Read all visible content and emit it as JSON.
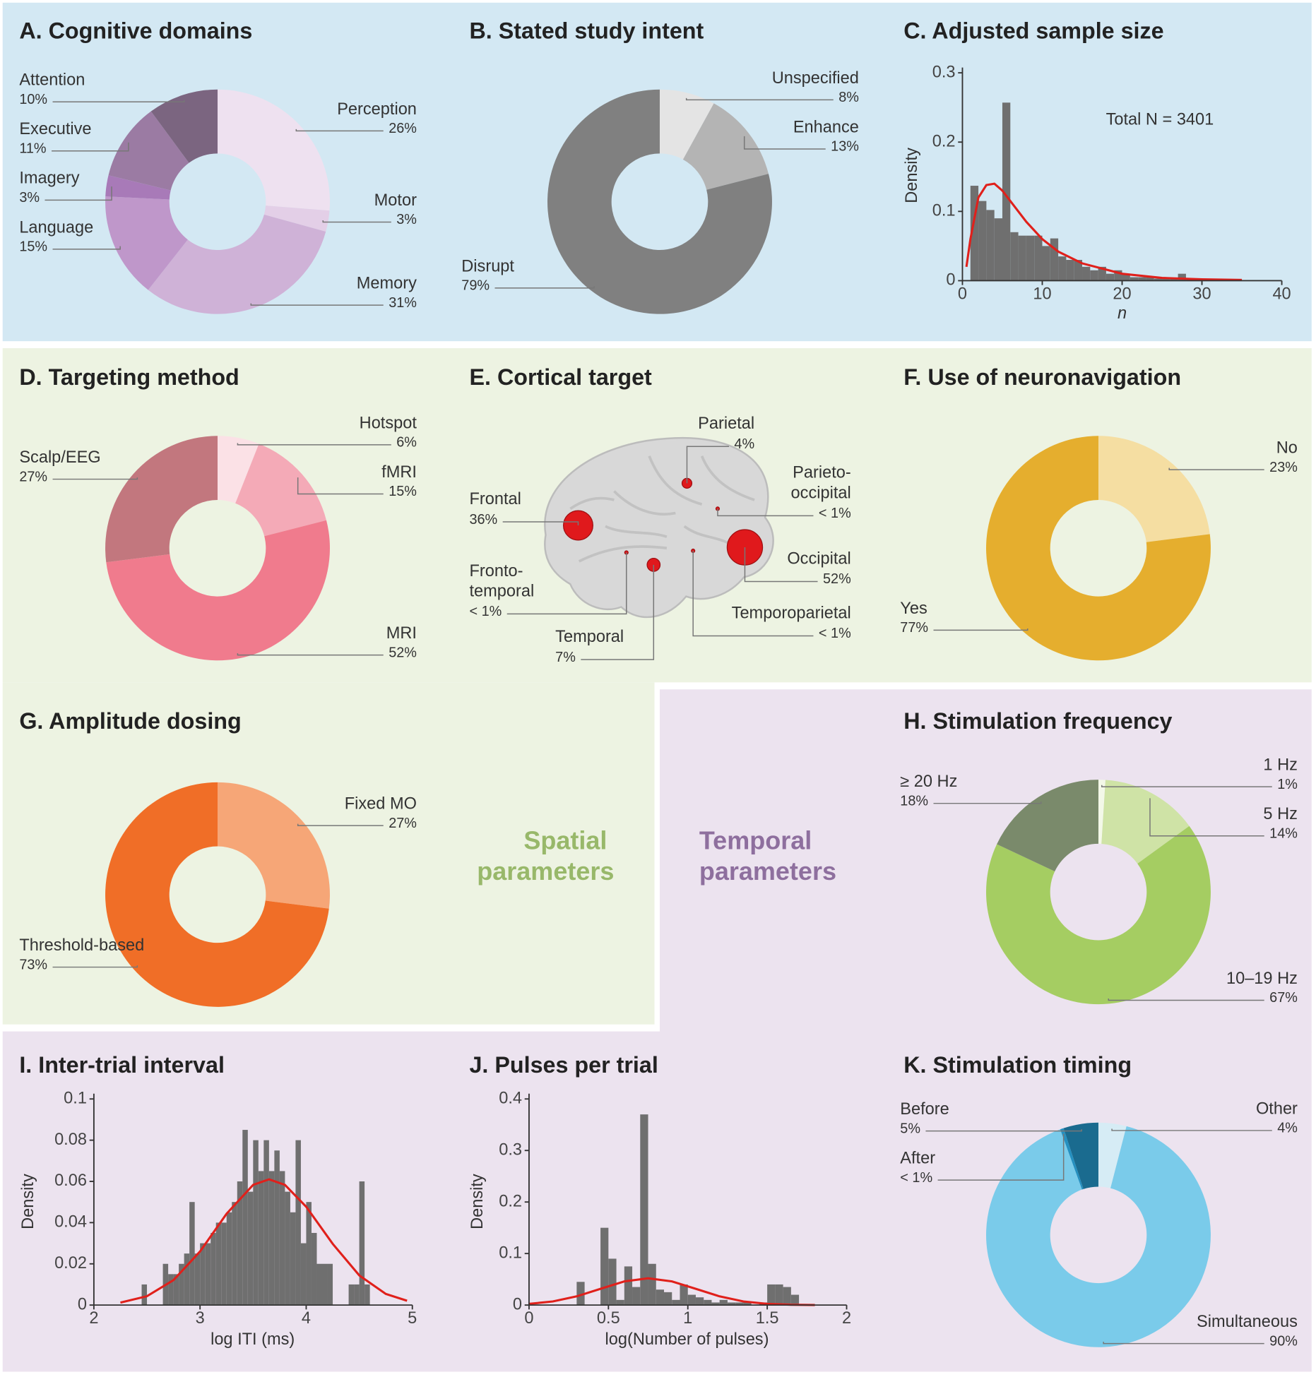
{
  "chart_data": [
    {
      "type": "donut",
      "title": "A. Cognitive domains",
      "categories": [
        "Perception",
        "Motor",
        "Memory",
        "Language",
        "Imagery",
        "Executive",
        "Attention"
      ],
      "values": [
        26,
        3,
        31,
        15,
        3,
        11,
        10
      ],
      "value_labels": [
        "26%",
        "3%",
        "31%",
        "15%",
        "3%",
        "11%",
        "10%"
      ],
      "colors": [
        "#eee1f0",
        "#e3cfe7",
        "#cfb2d7",
        "#bf97ca",
        "#a87ab8",
        "#9b7ba3",
        "#7b6580"
      ]
    },
    {
      "type": "donut",
      "title": "B. Stated study intent",
      "categories": [
        "Unspecified",
        "Enhance",
        "Disrupt"
      ],
      "values": [
        8,
        13,
        79
      ],
      "value_labels": [
        "8%",
        "13%",
        "79%"
      ],
      "colors": [
        "#e4e4e4",
        "#b4b4b4",
        "#808080"
      ]
    },
    {
      "type": "histogram",
      "title": "C. Adjusted sample size",
      "xlabel": "n",
      "ylabel": "Density",
      "annotation": "Total N = 3401",
      "bins": [
        1,
        2,
        3,
        4,
        5,
        6,
        7,
        8,
        9,
        10,
        11,
        12,
        13,
        14,
        15,
        16,
        17,
        18,
        19,
        20,
        21,
        22,
        23,
        24,
        25,
        26,
        27,
        28,
        29,
        30,
        31,
        32
      ],
      "values": [
        0.137,
        0.115,
        0.102,
        0.09,
        0.257,
        0.07,
        0.065,
        0.065,
        0.065,
        0.05,
        0.061,
        0.035,
        0.03,
        0.03,
        0.02,
        0.015,
        0.02,
        0.01,
        0.015,
        0.01,
        0.005,
        0.005,
        0.005,
        0.003,
        0.003,
        0.003,
        0.01,
        0.003,
        0.003,
        0.002,
        0.002
      ],
      "color": "#6f6f6f",
      "fit": {
        "color": "#e0201b",
        "x": [
          0.5,
          1,
          2,
          3,
          4,
          5,
          6,
          8,
          10,
          12,
          15,
          20,
          25,
          30,
          35
        ],
        "values": [
          0.02,
          0.06,
          0.12,
          0.138,
          0.14,
          0.13,
          0.115,
          0.085,
          0.06,
          0.042,
          0.025,
          0.01,
          0.004,
          0.002,
          0.001
        ]
      },
      "xlim": [
        0,
        40
      ],
      "xticks": [
        0,
        10,
        20,
        30,
        40
      ],
      "ylim": [
        0,
        0.3
      ],
      "yticks": [
        0,
        0.1,
        0.2,
        0.3
      ]
    },
    {
      "type": "donut",
      "title": "D. Targeting method",
      "categories": [
        "Hotspot",
        "fMRI",
        "MRI",
        "Scalp/EEG"
      ],
      "values": [
        6,
        15,
        52,
        27
      ],
      "value_labels": [
        "6%",
        "15%",
        "52%",
        "27%"
      ],
      "colors": [
        "#fbe1e6",
        "#f4aab7",
        "#f07b8d",
        "#c2777e"
      ]
    },
    {
      "type": "bubble",
      "title": "E. Cortical target",
      "color": "#e0191c",
      "categories": [
        "Parietal",
        "Parieto-occipital",
        "Occipital",
        "Temporoparietal",
        "Temporal",
        "Fronto-temporal",
        "Frontal"
      ],
      "values": [
        4,
        0.5,
        52,
        0.5,
        7,
        0.5,
        36
      ],
      "value_labels": [
        "4%",
        "< 1%",
        "52%",
        "< 1%",
        "7%",
        "< 1%",
        "36%"
      ]
    },
    {
      "type": "donut",
      "title": "F. Use of neuronavigation",
      "categories": [
        "No",
        "Yes"
      ],
      "values": [
        23,
        77
      ],
      "value_labels": [
        "23%",
        "77%"
      ],
      "colors": [
        "#f5dea2",
        "#e5ae2e"
      ]
    },
    {
      "type": "donut",
      "title": "G. Amplitude dosing",
      "categories": [
        "Fixed MO",
        "Threshold-based"
      ],
      "values": [
        27,
        73
      ],
      "value_labels": [
        "27%",
        "73%"
      ],
      "colors": [
        "#f6a677",
        "#f06e27"
      ]
    },
    {
      "type": "donut",
      "title": "H. Stimulation frequency",
      "categories": [
        "1 Hz",
        "5 Hz",
        "10–19 Hz",
        "≥ 20 Hz"
      ],
      "values": [
        1,
        14,
        67,
        18
      ],
      "value_labels": [
        "1%",
        "14%",
        "67%",
        "18%"
      ],
      "colors": [
        "#f3f8e8",
        "#cfe3a6",
        "#a5cd62",
        "#7a8a6b"
      ]
    },
    {
      "type": "histogram",
      "title": "I. Inter-trial interval",
      "xlabel": "log ITI (ms)",
      "ylabel": "Density",
      "bins": [
        2.45,
        2.5,
        2.55,
        2.6,
        2.65,
        2.7,
        2.75,
        2.8,
        2.85,
        2.9,
        2.95,
        3.0,
        3.05,
        3.1,
        3.15,
        3.2,
        3.25,
        3.3,
        3.35,
        3.4,
        3.45,
        3.5,
        3.55,
        3.6,
        3.65,
        3.7,
        3.75,
        3.8,
        3.85,
        3.9,
        3.95,
        4.0,
        4.05,
        4.1,
        4.15,
        4.2,
        4.25,
        4.3,
        4.35,
        4.4,
        4.45,
        4.5,
        4.55,
        4.6
      ],
      "values": [
        0.01,
        0,
        0,
        0,
        0.02,
        0.015,
        0.015,
        0.02,
        0.025,
        0.05,
        0.025,
        0.03,
        0.03,
        0.035,
        0.04,
        0.04,
        0.045,
        0.05,
        0.06,
        0.085,
        0.055,
        0.08,
        0.065,
        0.08,
        0.065,
        0.075,
        0.065,
        0.055,
        0.045,
        0.08,
        0.03,
        0.05,
        0.035,
        0.02,
        0.02,
        0.02,
        0,
        0,
        0,
        0.01,
        0.01,
        0.06,
        0.01
      ],
      "color": "#6f6f6f",
      "fit": {
        "color": "#e0201b",
        "x": [
          2.25,
          2.5,
          2.75,
          3,
          3.25,
          3.5,
          3.65,
          3.8,
          4,
          4.25,
          4.5,
          4.75,
          4.95
        ],
        "values": [
          0.0012,
          0.0043,
          0.0121,
          0.026,
          0.0443,
          0.0583,
          0.061,
          0.0583,
          0.0477,
          0.0297,
          0.0144,
          0.0054,
          0.0021
        ]
      },
      "xlim": [
        2,
        5
      ],
      "xticks": [
        2,
        3,
        4,
        5
      ],
      "ylim": [
        0,
        0.1
      ],
      "yticks": [
        0,
        0.02,
        0.04,
        0.06,
        0.08,
        0.1
      ]
    },
    {
      "type": "histogram",
      "title": "J. Pulses per trial",
      "xlabel": "log(Number of pulses)",
      "ylabel": "Density",
      "bins": [
        0.3,
        0.35,
        0.4,
        0.45,
        0.5,
        0.55,
        0.6,
        0.65,
        0.7,
        0.75,
        0.8,
        0.85,
        0.9,
        0.95,
        1.0,
        1.05,
        1.1,
        1.15,
        1.2,
        1.25,
        1.3,
        1.35,
        1.4,
        1.45,
        1.5,
        1.55,
        1.6,
        1.65,
        1.7
      ],
      "values": [
        0.045,
        0,
        0,
        0.15,
        0.09,
        0.01,
        0.075,
        0.035,
        0.37,
        0.08,
        0.03,
        0.025,
        0.01,
        0.04,
        0.02,
        0.015,
        0.01,
        0.005,
        0.01,
        0.005,
        0.005,
        0.005,
        0,
        0.005,
        0.04,
        0.04,
        0.035,
        0.02
      ],
      "color": "#6f6f6f",
      "fit": {
        "color": "#e0201b",
        "x": [
          0,
          0.15,
          0.3,
          0.45,
          0.6,
          0.75,
          0.9,
          1.05,
          1.2,
          1.35,
          1.5,
          1.65,
          1.8
        ],
        "values": [
          0.0023,
          0.007,
          0.0169,
          0.0315,
          0.0459,
          0.052,
          0.0459,
          0.0315,
          0.0169,
          0.007,
          0.0023,
          0.0006,
          0.0001
        ]
      },
      "xlim": [
        0,
        2
      ],
      "xticks": [
        0,
        0.5,
        1,
        1.5,
        2
      ],
      "ylim": [
        0,
        0.4
      ],
      "yticks": [
        0,
        0.1,
        0.2,
        0.3,
        0.4
      ]
    },
    {
      "type": "donut",
      "title": "K. Stimulation timing",
      "categories": [
        "Other",
        "Simultaneous",
        "After",
        "Before"
      ],
      "values": [
        4,
        90,
        0.5,
        5
      ],
      "value_labels": [
        "4%",
        "90%",
        "< 1%",
        "5%"
      ],
      "colors": [
        "#d6ecf5",
        "#7acbea",
        "#2590c0",
        "#1a6b8f"
      ]
    }
  ],
  "sections": [
    "Spatial parameters",
    "Temporal parameters"
  ]
}
